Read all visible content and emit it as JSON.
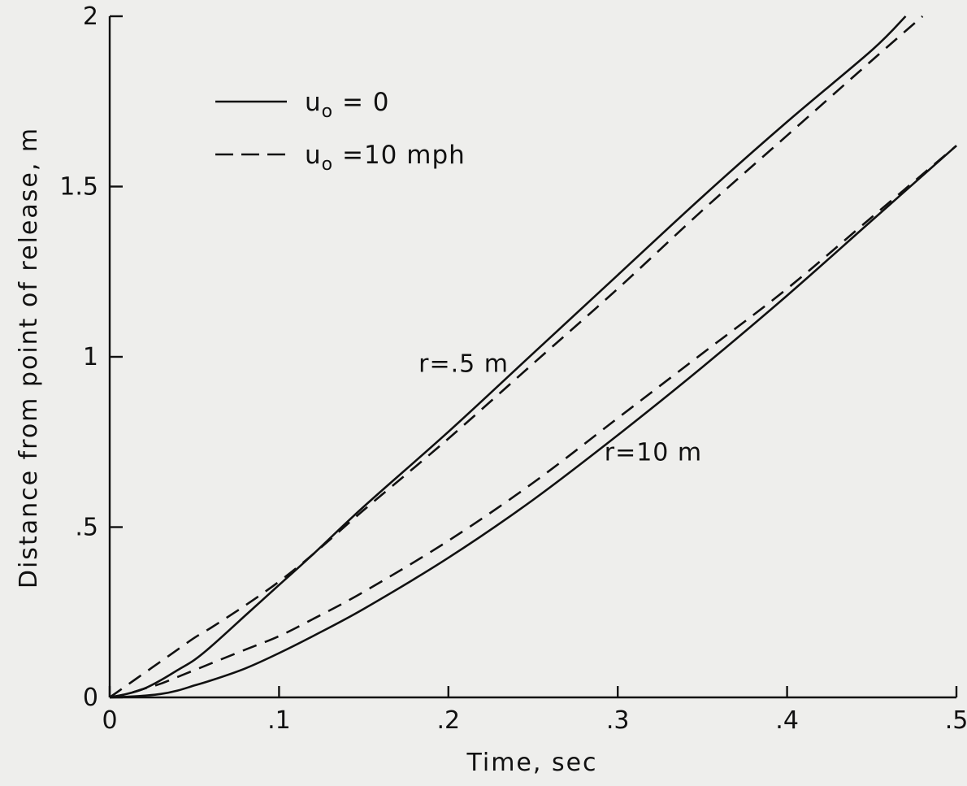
{
  "chart_data": {
    "type": "line",
    "title": "",
    "xlabel": "Time, sec",
    "ylabel": "Distance from point of release, m",
    "xlim": [
      0,
      0.5
    ],
    "ylim": [
      0,
      2
    ],
    "x_ticks": [
      {
        "value": 0,
        "label": "0"
      },
      {
        "value": 0.1,
        "label": ".1"
      },
      {
        "value": 0.2,
        "label": ".2"
      },
      {
        "value": 0.3,
        "label": ".3"
      },
      {
        "value": 0.4,
        "label": ".4"
      },
      {
        "value": 0.5,
        "label": ".5"
      }
    ],
    "y_ticks": [
      {
        "value": 0,
        "label": "0"
      },
      {
        "value": 0.5,
        "label": ".5"
      },
      {
        "value": 1,
        "label": "1"
      },
      {
        "value": 1.5,
        "label": "1.5"
      },
      {
        "value": 2,
        "label": "2"
      }
    ],
    "grid": false,
    "legend": {
      "placement": "top-left",
      "entries": [
        {
          "style": "solid",
          "label_main": "u",
          "label_sub": "o",
          "label_rest": " = 0"
        },
        {
          "style": "dashed",
          "label_main": "u",
          "label_sub": "o",
          "label_rest": " =10 mph"
        }
      ]
    },
    "series": [
      {
        "style": "solid",
        "group": "r=.5 m",
        "x": [
          0,
          0.01,
          0.02,
          0.03,
          0.04,
          0.05,
          0.06,
          0.08,
          0.1,
          0.12,
          0.15,
          0.2,
          0.25,
          0.3,
          0.35,
          0.4,
          0.45,
          0.47
        ],
        "y": [
          0,
          0.01,
          0.025,
          0.05,
          0.08,
          0.11,
          0.15,
          0.24,
          0.33,
          0.42,
          0.56,
          0.78,
          1.01,
          1.24,
          1.47,
          1.69,
          1.9,
          2.0
        ]
      },
      {
        "style": "dashed",
        "group": "r=.5 m",
        "x": [
          0,
          0.01,
          0.02,
          0.03,
          0.04,
          0.05,
          0.06,
          0.08,
          0.1,
          0.12,
          0.15,
          0.2,
          0.25,
          0.3,
          0.35,
          0.4,
          0.45,
          0.48
        ],
        "y": [
          0,
          0.035,
          0.07,
          0.105,
          0.14,
          0.175,
          0.205,
          0.27,
          0.34,
          0.42,
          0.55,
          0.76,
          0.98,
          1.2,
          1.43,
          1.65,
          1.87,
          2.0
        ]
      },
      {
        "style": "solid",
        "group": "r=10 m",
        "x": [
          0,
          0.01,
          0.02,
          0.03,
          0.04,
          0.05,
          0.06,
          0.08,
          0.1,
          0.12,
          0.15,
          0.2,
          0.25,
          0.3,
          0.35,
          0.4,
          0.45,
          0.5
        ],
        "y": [
          0,
          0.002,
          0.005,
          0.01,
          0.02,
          0.035,
          0.05,
          0.085,
          0.13,
          0.18,
          0.26,
          0.41,
          0.58,
          0.77,
          0.97,
          1.18,
          1.4,
          1.62
        ]
      },
      {
        "style": "dashed",
        "group": "r=10 m",
        "x": [
          0,
          0.01,
          0.02,
          0.03,
          0.04,
          0.05,
          0.06,
          0.08,
          0.1,
          0.12,
          0.15,
          0.2,
          0.25,
          0.3,
          0.35,
          0.4,
          0.45,
          0.5
        ],
        "y": [
          0,
          0.01,
          0.025,
          0.04,
          0.06,
          0.08,
          0.1,
          0.14,
          0.18,
          0.23,
          0.31,
          0.46,
          0.63,
          0.82,
          1.01,
          1.2,
          1.41,
          1.62
        ]
      }
    ],
    "annotations": [
      {
        "text": "r=.5 m",
        "x": 0.185,
        "y": 0.98
      },
      {
        "text": "r=10 m",
        "x": 0.297,
        "y": 0.72
      }
    ]
  }
}
